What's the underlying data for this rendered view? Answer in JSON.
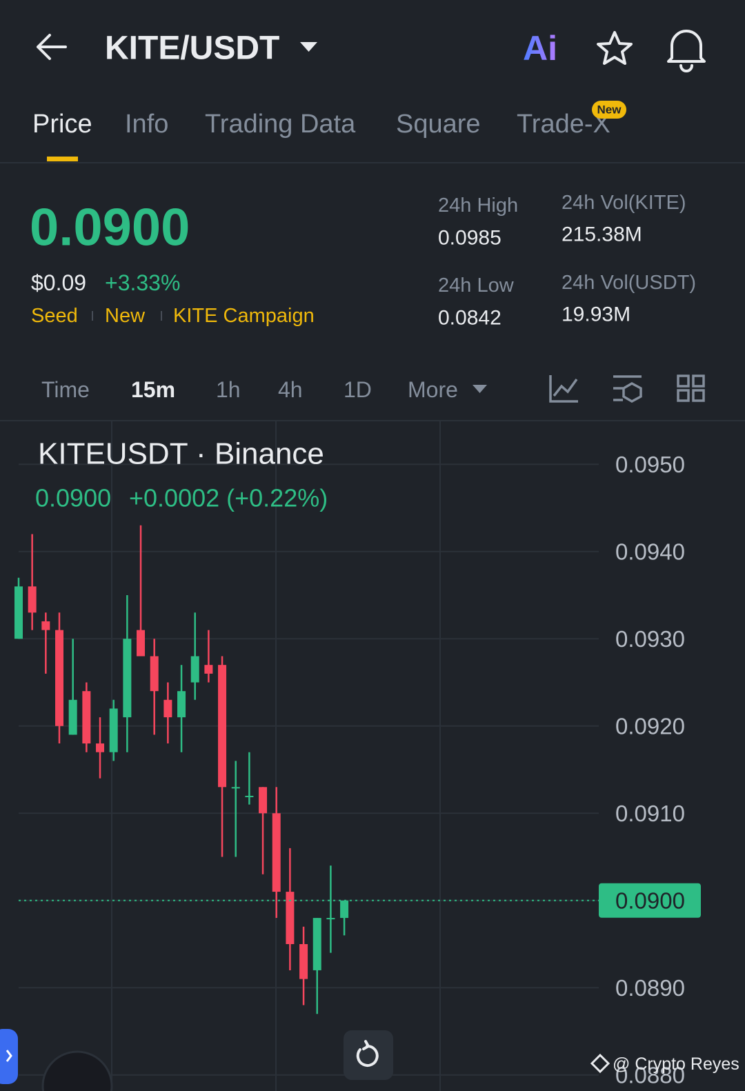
{
  "header": {
    "title": "KITE/USDT",
    "ai": "Ai"
  },
  "tabs": {
    "items": [
      "Price",
      "Info",
      "Trading Data",
      "Square",
      "Trade-X"
    ],
    "badge": "New"
  },
  "ticker": {
    "price": "0.0900",
    "usd": "$0.09",
    "change": "+3.33%",
    "tags": [
      "Seed",
      "New",
      "KITE Campaign"
    ],
    "stats": [
      {
        "label": "24h High",
        "value": "0.0985"
      },
      {
        "label": "24h Vol(KITE)",
        "value": "215.38M"
      },
      {
        "label": "24h Low",
        "value": "0.0842"
      },
      {
        "label": "24h Vol(USDT)",
        "value": "19.93M"
      }
    ]
  },
  "intervals": [
    "Time",
    "15m",
    "1h",
    "4h",
    "1D",
    "More"
  ],
  "chart_data": {
    "type": "candlestick",
    "title": "KITEUSDT · Binance",
    "last": "0.0900",
    "last_change": "+0.0002 (+0.22%)",
    "up_color": "#2ebd85",
    "down_color": "#f6465d",
    "open": [
      0.093,
      0.0936,
      0.0932,
      0.0931,
      0.0919,
      0.0924,
      0.0918,
      0.0917,
      0.0921,
      0.0931,
      0.0928,
      0.0923,
      0.0921,
      0.0925,
      0.0927,
      0.0927,
      0.0913,
      0.0912,
      0.0913,
      0.091,
      0.0901,
      0.0895,
      0.0892,
      0.0898,
      0.0898
    ],
    "high": [
      0.0937,
      0.0942,
      0.0933,
      0.0933,
      0.093,
      0.0925,
      0.0921,
      0.0923,
      0.0935,
      0.0943,
      0.093,
      0.0925,
      0.0927,
      0.0933,
      0.0931,
      0.0928,
      0.0916,
      0.0917,
      0.0913,
      0.0913,
      0.0906,
      0.0897,
      0.0898,
      0.0904,
      0.09
    ],
    "low": [
      0.093,
      0.0931,
      0.0926,
      0.0918,
      0.0919,
      0.0917,
      0.0914,
      0.0916,
      0.0917,
      0.0928,
      0.0919,
      0.0918,
      0.0917,
      0.0923,
      0.0925,
      0.0905,
      0.0905,
      0.0911,
      0.0903,
      0.0898,
      0.0892,
      0.0888,
      0.0887,
      0.0894,
      0.0896
    ],
    "close": [
      0.0936,
      0.0933,
      0.0931,
      0.092,
      0.0923,
      0.0918,
      0.0917,
      0.0922,
      0.093,
      0.0928,
      0.0924,
      0.0921,
      0.0924,
      0.0928,
      0.0926,
      0.0913,
      0.0913,
      0.0912,
      0.091,
      0.0901,
      0.0895,
      0.0891,
      0.0898,
      0.0898,
      0.09
    ],
    "current_price": {
      "value": 0.09,
      "label": "0.0900"
    },
    "ylim": [
      0.0878,
      0.0955
    ],
    "yticks": [
      {
        "value": 0.095,
        "label": "0.0950"
      },
      {
        "value": 0.094,
        "label": "0.0940"
      },
      {
        "value": 0.093,
        "label": "0.0930"
      },
      {
        "value": 0.092,
        "label": "0.0920"
      },
      {
        "value": 0.091,
        "label": "0.0910"
      },
      {
        "value": 0.09,
        "label": "0.0900"
      },
      {
        "value": 0.089,
        "label": "0.0890"
      },
      {
        "value": 0.088,
        "label": "0.0880"
      }
    ],
    "grid": true
  },
  "watermark": "@ Crypto Reyes"
}
